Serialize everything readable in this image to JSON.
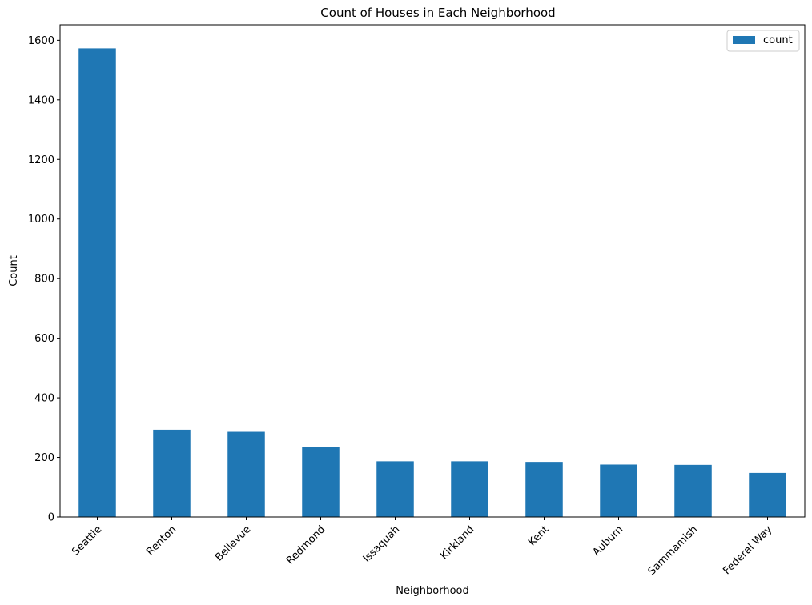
{
  "chart_data": {
    "type": "bar",
    "title": "Count of Houses in Each Neighborhood",
    "xlabel": "Neighborhood",
    "ylabel": "Count",
    "categories": [
      "Seattle",
      "Renton",
      "Bellevue",
      "Redmond",
      "Issaquah",
      "Kirkland",
      "Kent",
      "Auburn",
      "Sammamish",
      "Federal Way"
    ],
    "series": [
      {
        "name": "count",
        "values": [
          1573,
          293,
          286,
          235,
          187,
          187,
          185,
          176,
          175,
          148
        ]
      }
    ],
    "ylim": [
      0,
      1652
    ],
    "yticks": [
      0,
      200,
      400,
      600,
      800,
      1000,
      1200,
      1400,
      1600
    ],
    "grid": false,
    "legend_position": "top-right",
    "bar_color": "#1f77b4",
    "xtick_rotation_deg": 45
  }
}
